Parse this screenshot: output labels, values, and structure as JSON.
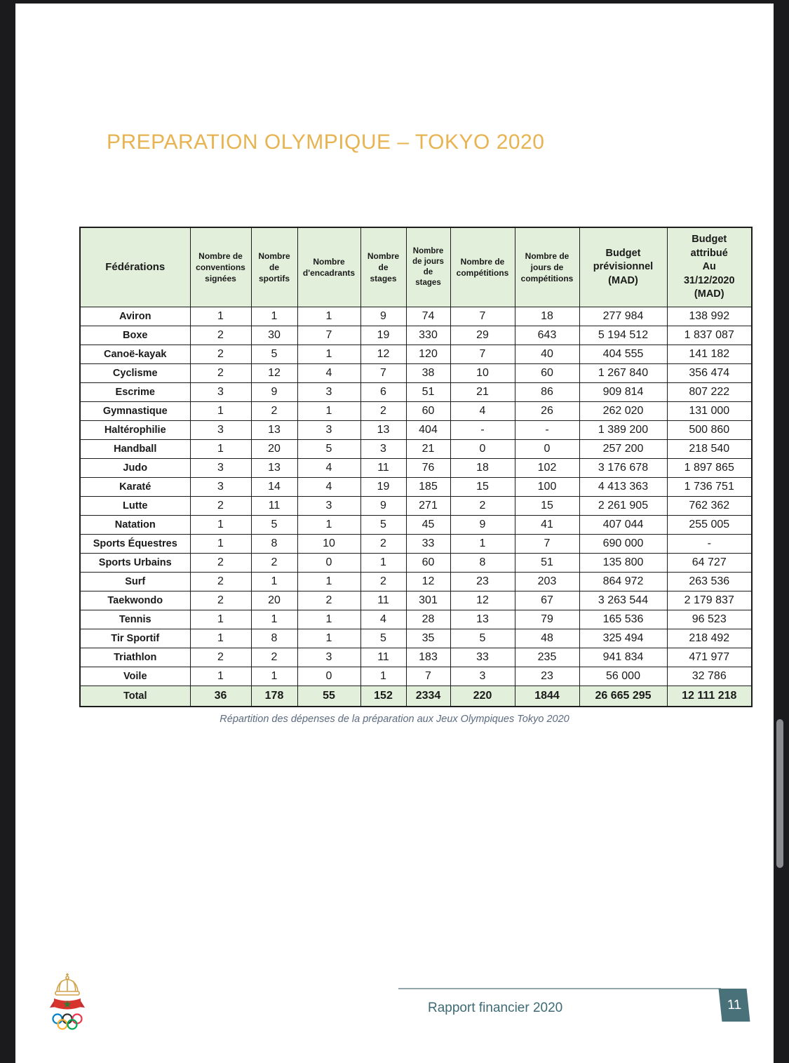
{
  "page": {
    "title": "PREPARATION OLYMPIQUE – TOKYO 2020",
    "caption": "Répartition des dépenses de la préparation aux Jeux Olympiques Tokyo 2020",
    "footer": {
      "report_label": "Rapport financier 2020",
      "page_number": "11"
    }
  },
  "table": {
    "headers": [
      "Fédérations",
      "Nombre de\nconventions\nsignées",
      "Nombre\nde\nsportifs",
      "Nombre\nd'encadrants",
      "Nombre\nde\nstages",
      "Nombre\nde jours\nde\nstages",
      "Nombre de\ncompétitions",
      "Nombre de\njours de\ncompétitions",
      "Budget\nprévisionnel\n(MAD)",
      "Budget\nattribué\nAu\n31/12/2020\n(MAD)"
    ],
    "rows": [
      {
        "federation": "Aviron",
        "values": [
          "1",
          "1",
          "1",
          "9",
          "74",
          "7",
          "18",
          "277 984",
          "138 992"
        ]
      },
      {
        "federation": "Boxe",
        "values": [
          "2",
          "30",
          "7",
          "19",
          "330",
          "29",
          "643",
          "5 194 512",
          "1 837 087"
        ]
      },
      {
        "federation": "Canoë-kayak",
        "values": [
          "2",
          "5",
          "1",
          "12",
          "120",
          "7",
          "40",
          "404 555",
          "141 182"
        ]
      },
      {
        "federation": "Cyclisme",
        "values": [
          "2",
          "12",
          "4",
          "7",
          "38",
          "10",
          "60",
          "1 267 840",
          "356 474"
        ]
      },
      {
        "federation": "Escrime",
        "values": [
          "3",
          "9",
          "3",
          "6",
          "51",
          "21",
          "86",
          "909 814",
          "807 222"
        ]
      },
      {
        "federation": "Gymnastique",
        "values": [
          "1",
          "2",
          "1",
          "2",
          "60",
          "4",
          "26",
          "262 020",
          "131 000"
        ]
      },
      {
        "federation": "Haltérophilie",
        "values": [
          "3",
          "13",
          "3",
          "13",
          "404",
          "-",
          "-",
          "1 389 200",
          "500 860"
        ]
      },
      {
        "federation": "Handball",
        "values": [
          "1",
          "20",
          "5",
          "3",
          "21",
          "0",
          "0",
          "257 200",
          "218 540"
        ]
      },
      {
        "federation": "Judo",
        "values": [
          "3",
          "13",
          "4",
          "11",
          "76",
          "18",
          "102",
          "3 176 678",
          "1 897 865"
        ]
      },
      {
        "federation": "Karaté",
        "values": [
          "3",
          "14",
          "4",
          "19",
          "185",
          "15",
          "100",
          "4 413 363",
          "1 736 751"
        ]
      },
      {
        "federation": "Lutte",
        "values": [
          "2",
          "11",
          "3",
          "9",
          "271",
          "2",
          "15",
          "2 261 905",
          "762 362"
        ]
      },
      {
        "federation": "Natation",
        "values": [
          "1",
          "5",
          "1",
          "5",
          "45",
          "9",
          "41",
          "407 044",
          "255 005"
        ]
      },
      {
        "federation": "Sports Équestres",
        "values": [
          "1",
          "8",
          "10",
          "2",
          "33",
          "1",
          "7",
          "690 000",
          "-"
        ]
      },
      {
        "federation": "Sports Urbains",
        "values": [
          "2",
          "2",
          "0",
          "1",
          "60",
          "8",
          "51",
          "135 800",
          "64 727"
        ]
      },
      {
        "federation": "Surf",
        "values": [
          "2",
          "1",
          "1",
          "2",
          "12",
          "23",
          "203",
          "864 972",
          "263 536"
        ]
      },
      {
        "federation": "Taekwondo",
        "values": [
          "2",
          "20",
          "2",
          "11",
          "301",
          "12",
          "67",
          "3 263 544",
          "2 179 837"
        ]
      },
      {
        "federation": "Tennis",
        "values": [
          "1",
          "1",
          "1",
          "4",
          "28",
          "13",
          "79",
          "165 536",
          "96 523"
        ]
      },
      {
        "federation": "Tir Sportif",
        "values": [
          "1",
          "8",
          "1",
          "5",
          "35",
          "5",
          "48",
          "325 494",
          "218 492"
        ]
      },
      {
        "federation": "Triathlon",
        "values": [
          "2",
          "2",
          "3",
          "11",
          "183",
          "33",
          "235",
          "941 834",
          "471 977"
        ]
      },
      {
        "federation": "Voile",
        "values": [
          "1",
          "1",
          "0",
          "1",
          "7",
          "3",
          "23",
          "56 000",
          "32 786"
        ]
      }
    ],
    "total": {
      "label": "Total",
      "values": [
        "36",
        "178",
        "55",
        "152",
        "2334",
        "220",
        "1844",
        "26 665 295",
        "12 111 218"
      ]
    }
  },
  "icons": {
    "logo": "moroccan-olympic-committee-logo",
    "scrollbar": "vertical-scrollbar-thumb"
  },
  "colors": {
    "title_accent": "#e8b351",
    "table_header_bg": "#e2efda",
    "footer_teal": "#3d6a74",
    "badge_bg": "#48717a",
    "viewer_background": "#1b1b1d"
  }
}
